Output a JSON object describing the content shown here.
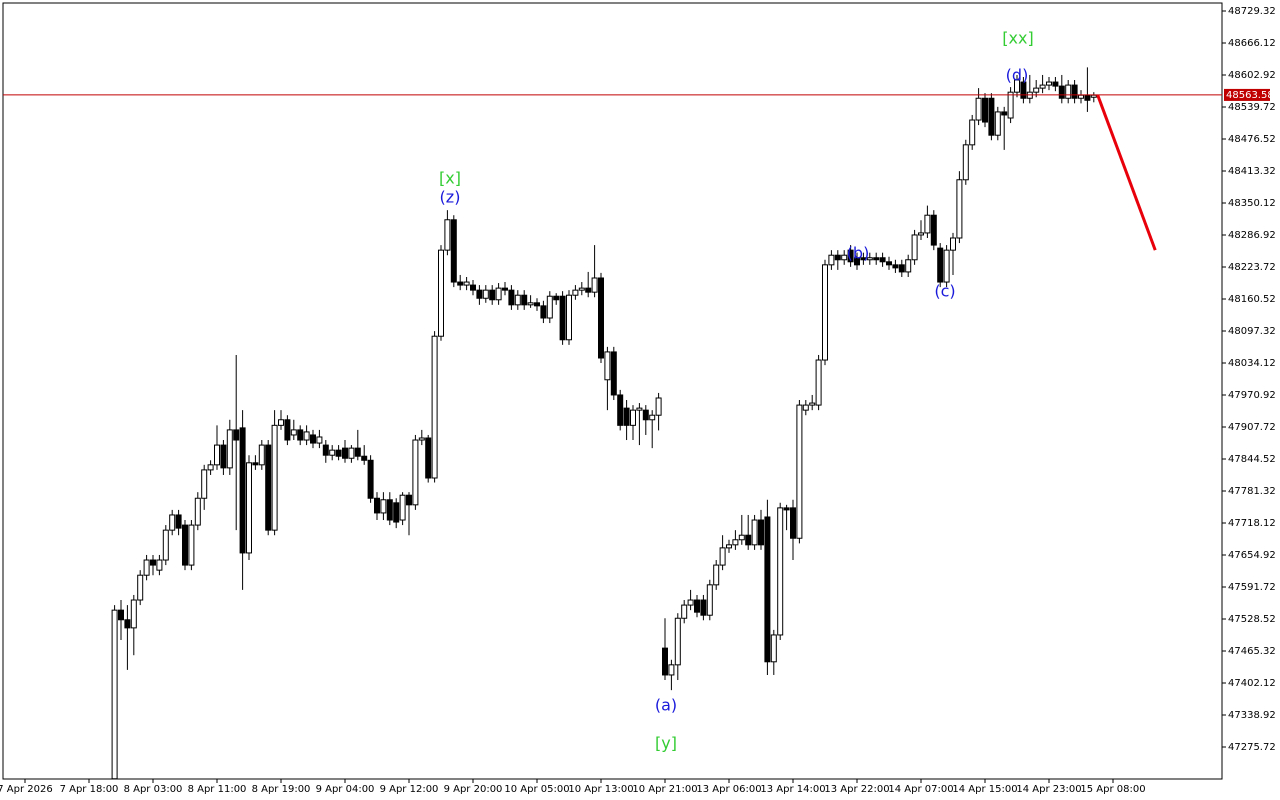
{
  "chart_data": {
    "type": "candlestick",
    "up_color": "#ffffff",
    "down_color": "#000000",
    "wick_color": "#000000",
    "ylim": [
      47212.52,
      48745.12
    ],
    "yticks": [
      48729.32,
      48666.12,
      48602.92,
      48539.72,
      48476.52,
      48413.32,
      48350.12,
      48286.92,
      48223.72,
      48160.52,
      48097.32,
      48034.12,
      47970.92,
      47907.72,
      47844.52,
      47781.32,
      47718.12,
      47654.92,
      47591.72,
      47528.52,
      47465.32,
      47402.12,
      47338.92,
      47275.72
    ],
    "x_labels": [
      "7 Apr 2026",
      "7 Apr 18:00",
      "8 Apr 03:00",
      "8 Apr 11:00",
      "8 Apr 19:00",
      "9 Apr 04:00",
      "9 Apr 12:00",
      "9 Apr 20:00",
      "10 Apr 05:00",
      "10 Apr 13:00",
      "10 Apr 21:00",
      "13 Apr 06:00",
      "13 Apr 14:00",
      "13 Apr 22:00",
      "14 Apr 07:00",
      "14 Apr 15:00",
      "14 Apr 23:00",
      "15 Apr 08:00"
    ],
    "current_price": 48563.58,
    "price_line_color": "#c00000",
    "forecast": {
      "color": "#e8000b",
      "values": [
        48563.58,
        48257
      ]
    },
    "annotations": [
      {
        "text": "[xx]",
        "color": "#33cc33"
      },
      {
        "text": "(d)",
        "color": "#1a1adb"
      },
      {
        "text": "[x]",
        "color": "#33cc33"
      },
      {
        "text": "(z)",
        "color": "#1a1adb"
      },
      {
        "text": "(b)",
        "color": "#1a1adb"
      },
      {
        "text": "(c)",
        "color": "#1a1adb"
      },
      {
        "text": "(a)",
        "color": "#1a1adb"
      },
      {
        "text": "[y]",
        "color": "#33cc33"
      }
    ],
    "candles": [
      [
        47213,
        47556,
        47213,
        47546
      ],
      [
        47546,
        47566,
        47487,
        47527
      ],
      [
        47527,
        47556,
        47428,
        47511
      ],
      [
        47511,
        47576,
        47457,
        47566
      ],
      [
        47566,
        47625,
        47556,
        47615
      ],
      [
        47615,
        47655,
        47605,
        47645
      ],
      [
        47645,
        47655,
        47615,
        47635
      ],
      [
        47625,
        47655,
        47615,
        47645
      ],
      [
        47645,
        47714,
        47635,
        47704
      ],
      [
        47704,
        47744,
        47694,
        47734
      ],
      [
        47734,
        47744,
        47694,
        47708
      ],
      [
        47714,
        47724,
        47625,
        47635
      ],
      [
        47635,
        47724,
        47625,
        47714
      ],
      [
        47714,
        47779,
        47704,
        47767
      ],
      [
        47767,
        47833,
        47744,
        47823
      ],
      [
        47823,
        47842,
        47813,
        47833
      ],
      [
        47833,
        47911,
        47823,
        47872
      ],
      [
        47872,
        47882,
        47813,
        47827
      ],
      [
        47827,
        47922,
        47813,
        47902
      ],
      [
        47902,
        48050,
        47704,
        47882
      ],
      [
        47906,
        47941,
        47586,
        47659
      ],
      [
        47659,
        47852,
        47645,
        47837
      ],
      [
        47837,
        47852,
        47823,
        47833
      ],
      [
        47833,
        47882,
        47823,
        47872
      ],
      [
        47872,
        47882,
        47694,
        47704
      ],
      [
        47704,
        47941,
        47694,
        47911
      ],
      [
        47911,
        47941,
        47902,
        47922
      ],
      [
        47922,
        47931,
        47872,
        47882
      ],
      [
        47892,
        47922,
        47882,
        47902
      ],
      [
        47902,
        47911,
        47872,
        47882
      ],
      [
        47882,
        47911,
        47872,
        47898
      ],
      [
        47892,
        47902,
        47866,
        47876
      ],
      [
        47876,
        47902,
        47866,
        47888
      ],
      [
        47872,
        47882,
        47837,
        47852
      ],
      [
        47852,
        47872,
        47842,
        47862
      ],
      [
        47862,
        47872,
        47842,
        47850
      ],
      [
        47866,
        47882,
        47837,
        47846
      ],
      [
        47846,
        47872,
        47837,
        47866
      ],
      [
        47866,
        47902,
        47842,
        47850
      ],
      [
        47850,
        47872,
        47833,
        47842
      ],
      [
        47842,
        47852,
        47758,
        47767
      ],
      [
        47767,
        47779,
        47724,
        47738
      ],
      [
        47738,
        47779,
        47724,
        47764
      ],
      [
        47764,
        47779,
        47714,
        47724
      ],
      [
        47758,
        47767,
        47708,
        47720
      ],
      [
        47724,
        47779,
        47714,
        47773
      ],
      [
        47773,
        47779,
        47694,
        47754
      ],
      [
        47754,
        47892,
        47744,
        47882
      ],
      [
        47882,
        47902,
        47872,
        47886
      ],
      [
        47886,
        47892,
        47798,
        47807
      ],
      [
        47807,
        48097,
        47798,
        48087
      ],
      [
        48087,
        48267,
        48078,
        48257
      ],
      [
        48257,
        48336,
        48247,
        48317
      ],
      [
        48317,
        48326,
        48184,
        48194
      ],
      [
        48194,
        48208,
        48178,
        48188
      ],
      [
        48188,
        48204,
        48178,
        48194
      ],
      [
        48188,
        48198,
        48168,
        48178
      ],
      [
        48178,
        48188,
        48149,
        48162
      ],
      [
        48162,
        48188,
        48153,
        48178
      ],
      [
        48178,
        48188,
        48149,
        48159
      ],
      [
        48159,
        48192,
        48149,
        48182
      ],
      [
        48182,
        48194,
        48168,
        48178
      ],
      [
        48178,
        48188,
        48139,
        48149
      ],
      [
        48149,
        48178,
        48139,
        48168
      ],
      [
        48168,
        48178,
        48139,
        48149
      ],
      [
        48149,
        48168,
        48143,
        48153
      ],
      [
        48153,
        48162,
        48137,
        48147
      ],
      [
        48147,
        48157,
        48113,
        48123
      ],
      [
        48123,
        48176,
        48113,
        48166
      ],
      [
        48166,
        48172,
        48149,
        48159
      ],
      [
        48166,
        48176,
        48070,
        48080
      ],
      [
        48080,
        48178,
        48070,
        48168
      ],
      [
        48168,
        48188,
        48159,
        48178
      ],
      [
        48178,
        48194,
        48168,
        48182
      ],
      [
        48182,
        48214,
        48164,
        48174
      ],
      [
        48174,
        48267,
        48164,
        48202
      ],
      [
        48202,
        48212,
        48034,
        48044
      ],
      [
        48001,
        48066,
        47941,
        48056
      ],
      [
        48056,
        48066,
        47961,
        47971
      ],
      [
        47971,
        47981,
        47901,
        47911
      ],
      [
        47945,
        47961,
        47882,
        47911
      ],
      [
        47911,
        47951,
        47882,
        47941
      ],
      [
        47941,
        47955,
        47872,
        47945
      ],
      [
        47941,
        47951,
        47892,
        47922
      ],
      [
        47922,
        47941,
        47866,
        47931
      ],
      [
        47931,
        47975,
        47901,
        47965
      ],
      [
        47471,
        47530,
        47408,
        47418
      ],
      [
        47418,
        47448,
        47388,
        47438
      ],
      [
        47438,
        47540,
        47408,
        47530
      ],
      [
        47530,
        47566,
        47520,
        47556
      ],
      [
        47556,
        47586,
        47546,
        47566
      ],
      [
        47566,
        47576,
        47532,
        47542
      ],
      [
        47566,
        47576,
        47526,
        47536
      ],
      [
        47536,
        47606,
        47526,
        47596
      ],
      [
        47596,
        47645,
        47586,
        47635
      ],
      [
        47635,
        47694,
        47625,
        47669
      ],
      [
        47669,
        47685,
        47659,
        47675
      ],
      [
        47675,
        47704,
        47665,
        47685
      ],
      [
        47685,
        47734,
        47675,
        47694
      ],
      [
        47694,
        47734,
        47665,
        47675
      ],
      [
        47675,
        47734,
        47665,
        47724
      ],
      [
        47724,
        47744,
        47665,
        47675
      ],
      [
        47730,
        47764,
        47418,
        47444
      ],
      [
        47444,
        47507,
        47418,
        47497
      ],
      [
        47497,
        47758,
        47487,
        47748
      ],
      [
        47748,
        47754,
        47704,
        47744
      ],
      [
        47748,
        47764,
        47645,
        47688
      ],
      [
        47688,
        47961,
        47678,
        47951
      ],
      [
        47941,
        47961,
        47931,
        47951
      ],
      [
        47951,
        47971,
        47941,
        47955
      ],
      [
        47951,
        48050,
        47941,
        48040
      ],
      [
        48040,
        48238,
        48030,
        48228
      ],
      [
        48228,
        48257,
        48218,
        48247
      ],
      [
        48247,
        48257,
        48218,
        48238
      ],
      [
        48238,
        48257,
        48228,
        48247
      ],
      [
        48257,
        48267,
        48224,
        48234
      ],
      [
        48242,
        48252,
        48218,
        48228
      ],
      [
        48242,
        48252,
        48228,
        48238
      ],
      [
        48238,
        48252,
        48228,
        48242
      ],
      [
        48242,
        48252,
        48228,
        48238
      ],
      [
        48242,
        48252,
        48224,
        48234
      ],
      [
        48234,
        48244,
        48218,
        48228
      ],
      [
        48228,
        48238,
        48212,
        48222
      ],
      [
        48228,
        48238,
        48204,
        48214
      ],
      [
        48214,
        48248,
        48204,
        48238
      ],
      [
        48238,
        48297,
        48228,
        48287
      ],
      [
        48287,
        48316,
        48277,
        48291
      ],
      [
        48291,
        48345,
        48281,
        48326
      ],
      [
        48326,
        48336,
        48257,
        48267
      ],
      [
        48261,
        48271,
        48184,
        48194
      ],
      [
        48194,
        48267,
        48184,
        48257
      ],
      [
        48257,
        48291,
        48208,
        48281
      ],
      [
        48281,
        48413,
        48271,
        48396
      ],
      [
        48396,
        48475,
        48386,
        48465
      ],
      [
        48465,
        48524,
        48455,
        48514
      ],
      [
        48514,
        48577,
        48504,
        48557
      ],
      [
        48557,
        48567,
        48500,
        48510
      ],
      [
        48557,
        48567,
        48474,
        48484
      ],
      [
        48484,
        48540,
        48474,
        48530
      ],
      [
        48530,
        48540,
        48455,
        48524
      ],
      [
        48518,
        48579,
        48508,
        48569
      ],
      [
        48569,
        48603,
        48559,
        48593
      ],
      [
        48589,
        48599,
        48547,
        48557
      ],
      [
        48557,
        48603,
        48547,
        48569
      ],
      [
        48569,
        48593,
        48559,
        48577
      ],
      [
        48577,
        48603,
        48567,
        48583
      ],
      [
        48583,
        48599,
        48573,
        48589
      ],
      [
        48589,
        48599,
        48571,
        48581
      ],
      [
        48581,
        48603,
        48547,
        48557
      ],
      [
        48557,
        48593,
        48547,
        48583
      ],
      [
        48583,
        48593,
        48547,
        48557
      ],
      [
        48557,
        48573,
        48547,
        48563
      ],
      [
        48563,
        48618,
        48530,
        48553
      ],
      [
        48559,
        48569,
        48549,
        48563
      ]
    ]
  }
}
